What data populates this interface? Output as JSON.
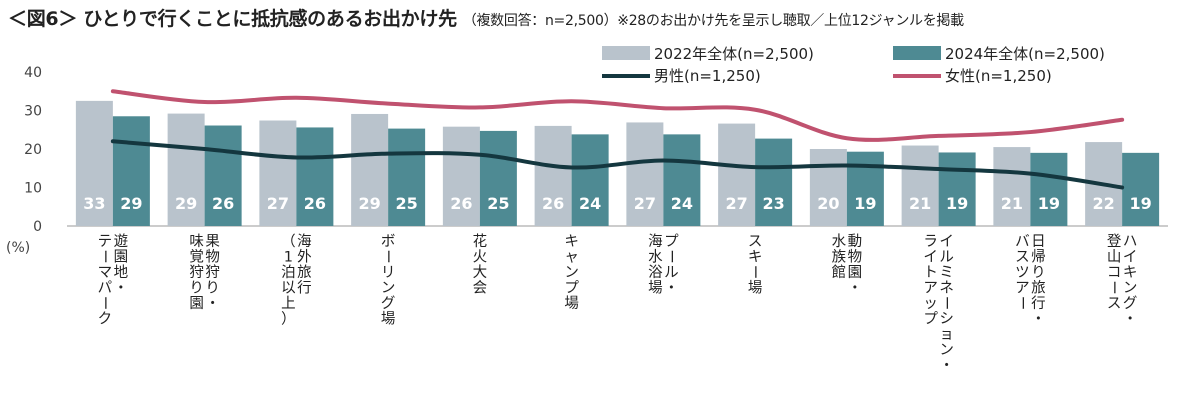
{
  "title": "＜図6＞ ひとりで行くことに抵抗感のあるお出かけ先",
  "subtitle": "（複数回答：n=2,500）※28のお出かけ先を呈示し聴取／上位12ジャンルを掲載",
  "colors": {
    "bar2022": "#b9c3cc",
    "bar2024": "#4e8a93",
    "male": "#14373f",
    "female": "#c0526f",
    "axis": "#999999"
  },
  "chart_data": {
    "type": "bar",
    "y_unit_label": "(%)",
    "ylim": [
      0,
      40
    ],
    "yticks": [
      "0",
      "10",
      "20",
      "30",
      "40"
    ],
    "categories": [
      [
        "遊園地・",
        "テーマパーク"
      ],
      [
        "果物狩り・",
        "味覚狩り園"
      ],
      [
        "海外旅行",
        "（1泊以上）"
      ],
      [
        "ボーリング場"
      ],
      [
        "花火大会"
      ],
      [
        "キャンプ場"
      ],
      [
        "プール・",
        "海水浴場"
      ],
      [
        "スキー場"
      ],
      [
        "動物園・",
        "水族館"
      ],
      [
        "イルミネーション・",
        "ライトアップ"
      ],
      [
        "日帰り旅行・",
        "バスツアー"
      ],
      [
        "ハイキング・",
        "登山コース"
      ]
    ],
    "series": [
      {
        "name": "2022年全体(n=2,500)",
        "kind": "bar",
        "values": [
          32.5,
          29.2,
          27.4,
          29.1,
          25.8,
          26.0,
          26.9,
          26.6,
          20.0,
          20.9,
          20.5,
          21.8
        ],
        "labels": [
          "33",
          "29",
          "27",
          "29",
          "26",
          "26",
          "27",
          "27",
          "20",
          "21",
          "21",
          "22"
        ]
      },
      {
        "name": "2024年全体(n=2,500)",
        "kind": "bar",
        "values": [
          28.5,
          26.1,
          25.6,
          25.3,
          24.7,
          23.8,
          23.8,
          22.7,
          19.3,
          19.1,
          19.0,
          19.0
        ],
        "labels": [
          "29",
          "26",
          "26",
          "25",
          "25",
          "24",
          "24",
          "23",
          "19",
          "19",
          "19",
          "19"
        ]
      },
      {
        "name": "男性(n=1,250)",
        "kind": "line",
        "values": [
          22.0,
          20.0,
          17.8,
          18.8,
          18.5,
          15.2,
          17.0,
          15.3,
          15.7,
          14.8,
          13.6,
          10.0
        ]
      },
      {
        "name": "女性(n=1,250)",
        "kind": "line",
        "values": [
          35.0,
          32.2,
          33.3,
          31.8,
          30.8,
          32.4,
          30.6,
          30.2,
          22.8,
          23.4,
          24.4,
          27.6
        ]
      }
    ]
  }
}
